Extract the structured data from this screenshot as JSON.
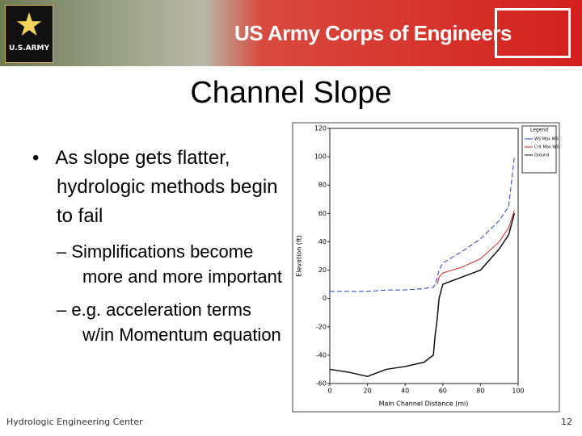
{
  "header": {
    "army_logo": "U.S.ARMY",
    "org": "US Army Corps of Engineers"
  },
  "title": "Channel Slope",
  "bullets": [
    {
      "text": "As slope gets flatter, hydrologic methods begin to fail",
      "sub": [
        "Simplifications become more and more important",
        "e.g. acceleration terms w/in Momentum equation"
      ]
    }
  ],
  "chart_data": {
    "type": "line",
    "xlabel": "Main Channel Distance (mi)",
    "ylabel": "Elevation (ft)",
    "legend_title": "Legend",
    "x": [
      0,
      10,
      20,
      30,
      40,
      50,
      55,
      56,
      57,
      58,
      60,
      70,
      80,
      90,
      95,
      98
    ],
    "series": [
      {
        "name": "WS Max WS",
        "color": "#1f3fbf",
        "values": [
          5,
          5,
          5,
          6,
          6,
          7,
          8,
          10,
          15,
          20,
          25,
          33,
          42,
          55,
          65,
          100
        ]
      },
      {
        "name": "Crit Max WS",
        "color": "#d02020",
        "values": [
          null,
          null,
          null,
          null,
          null,
          null,
          null,
          null,
          10,
          15,
          18,
          22,
          28,
          40,
          50,
          62
        ]
      },
      {
        "name": "Ground",
        "color": "#111111",
        "values": [
          -50,
          -52,
          -55,
          -50,
          -48,
          -45,
          -40,
          -25,
          -15,
          0,
          10,
          15,
          20,
          35,
          45,
          60
        ]
      }
    ],
    "xlim": [
      0,
      100
    ],
    "xticks": [
      0,
      20,
      40,
      60,
      80,
      100
    ],
    "ylim": [
      -60,
      120
    ],
    "yticks": [
      -60,
      -40,
      -20,
      0,
      20,
      40,
      60,
      80,
      100,
      120
    ]
  },
  "footer": {
    "left": "Hydrologic Engineering Center",
    "page": 12
  }
}
